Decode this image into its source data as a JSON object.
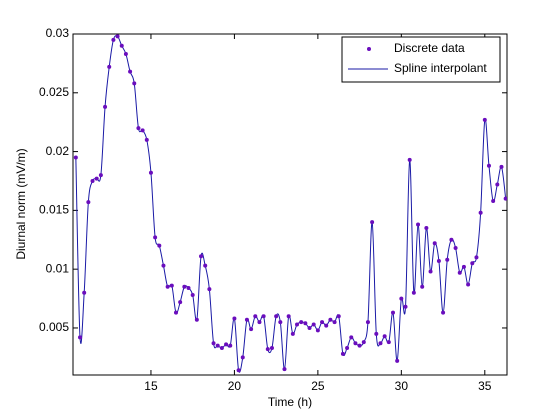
{
  "chart_data": {
    "type": "line",
    "xlabel": "Time (h)",
    "ylabel": "Diurnal norm (mV/m)",
    "x": [
      10.5,
      10.75,
      11,
      11.25,
      11.5,
      11.75,
      12,
      12.25,
      12.5,
      12.75,
      13,
      13.25,
      13.5,
      13.75,
      14,
      14.25,
      14.5,
      14.75,
      15,
      15.25,
      15.5,
      15.75,
      16,
      16.25,
      16.5,
      16.75,
      17,
      17.25,
      17.5,
      17.75,
      18,
      18.25,
      18.5,
      18.75,
      19,
      19.25,
      19.5,
      19.75,
      20,
      20.25,
      20.5,
      20.75,
      21,
      21.25,
      21.5,
      21.75,
      22,
      22.25,
      22.5,
      22.75,
      23,
      23.25,
      23.5,
      23.75,
      24,
      24.25,
      24.5,
      24.75,
      25,
      25.25,
      25.5,
      25.75,
      26,
      26.25,
      26.5,
      26.75,
      27,
      27.25,
      27.5,
      27.75,
      28,
      28.25,
      28.5,
      28.75,
      29,
      29.25,
      29.5,
      29.75,
      30,
      30.25,
      30.5,
      30.75,
      31,
      31.25,
      31.5,
      31.75,
      32,
      32.25,
      32.5,
      32.75,
      33,
      33.25,
      33.5,
      33.75,
      34,
      34.25,
      34.5,
      34.75,
      35,
      35.25,
      35.5,
      35.75,
      36,
      36.25
    ],
    "series": [
      {
        "name": "Discrete data",
        "color": "#6a0dbd",
        "style": "markers",
        "values": [
          0.0195,
          0.0042,
          0.008,
          0.0157,
          0.0175,
          0.0177,
          0.018,
          0.0238,
          0.0272,
          0.0295,
          0.0298,
          0.029,
          0.0283,
          0.0268,
          0.0258,
          0.022,
          0.0218,
          0.021,
          0.0182,
          0.0127,
          0.012,
          0.0103,
          0.0085,
          0.0086,
          0.0063,
          0.0072,
          0.0085,
          0.0084,
          0.0078,
          0.0057,
          0.0111,
          0.0103,
          0.0083,
          0.0037,
          0.0035,
          0.0033,
          0.0036,
          0.0035,
          0.0058,
          0.0014,
          0.0025,
          0.0057,
          0.0049,
          0.006,
          0.0055,
          0.006,
          0.0032,
          0.0033,
          0.006,
          0.0055,
          0.0015,
          0.006,
          0.0045,
          0.0053,
          0.0055,
          0.0054,
          0.005,
          0.0053,
          0.0048,
          0.0055,
          0.0052,
          0.0057,
          0.0055,
          0.006,
          0.0028,
          0.0033,
          0.0042,
          0.0037,
          0.0035,
          0.0038,
          0.0055,
          0.014,
          0.0045,
          0.0037,
          0.0043,
          0.0038,
          0.0063,
          0.0022,
          0.0075,
          0.0068,
          0.0193,
          0.008,
          0.0138,
          0.0085,
          0.0135,
          0.0098,
          0.0122,
          0.0107,
          0.0063,
          0.0108,
          0.0125,
          0.0118,
          0.0097,
          0.0102,
          0.0087,
          0.0105,
          0.011,
          0.0148,
          0.0227,
          0.0188,
          0.0158,
          0.0172,
          0.0187,
          0.016
        ]
      },
      {
        "name": "Spline interpolant",
        "color": "#1a1aa6",
        "style": "line",
        "values": [
          0.0195,
          0.0042,
          0.008,
          0.0157,
          0.0175,
          0.0177,
          0.018,
          0.0238,
          0.0272,
          0.0295,
          0.0298,
          0.029,
          0.0283,
          0.0268,
          0.0258,
          0.022,
          0.0218,
          0.021,
          0.0182,
          0.0127,
          0.012,
          0.0103,
          0.0085,
          0.0086,
          0.0063,
          0.0072,
          0.0085,
          0.0084,
          0.0078,
          0.0057,
          0.0111,
          0.0103,
          0.0083,
          0.0037,
          0.0035,
          0.0033,
          0.0036,
          0.0035,
          0.0058,
          0.0014,
          0.0025,
          0.0057,
          0.0049,
          0.006,
          0.0055,
          0.006,
          0.0032,
          0.0033,
          0.006,
          0.0055,
          0.0015,
          0.006,
          0.0045,
          0.0053,
          0.0055,
          0.0054,
          0.005,
          0.0053,
          0.0048,
          0.0055,
          0.0052,
          0.0057,
          0.0055,
          0.006,
          0.0028,
          0.0033,
          0.0042,
          0.0037,
          0.0035,
          0.0038,
          0.0055,
          0.014,
          0.0045,
          0.0037,
          0.0043,
          0.0038,
          0.0063,
          0.0022,
          0.0075,
          0.0068,
          0.0193,
          0.008,
          0.0138,
          0.0085,
          0.0135,
          0.0098,
          0.0122,
          0.0107,
          0.0063,
          0.0108,
          0.0125,
          0.0118,
          0.0097,
          0.0102,
          0.0087,
          0.0105,
          0.011,
          0.0148,
          0.0227,
          0.0188,
          0.0158,
          0.0172,
          0.0187,
          0.016
        ]
      }
    ],
    "xlim": [
      10.33,
      36.33
    ],
    "ylim": [
      0.001,
      0.03
    ],
    "xticks": [
      15,
      20,
      25,
      30,
      35
    ],
    "yticks": [
      0.005,
      0.01,
      0.015,
      0.02,
      0.025,
      0.03
    ],
    "legend": "top-right"
  }
}
